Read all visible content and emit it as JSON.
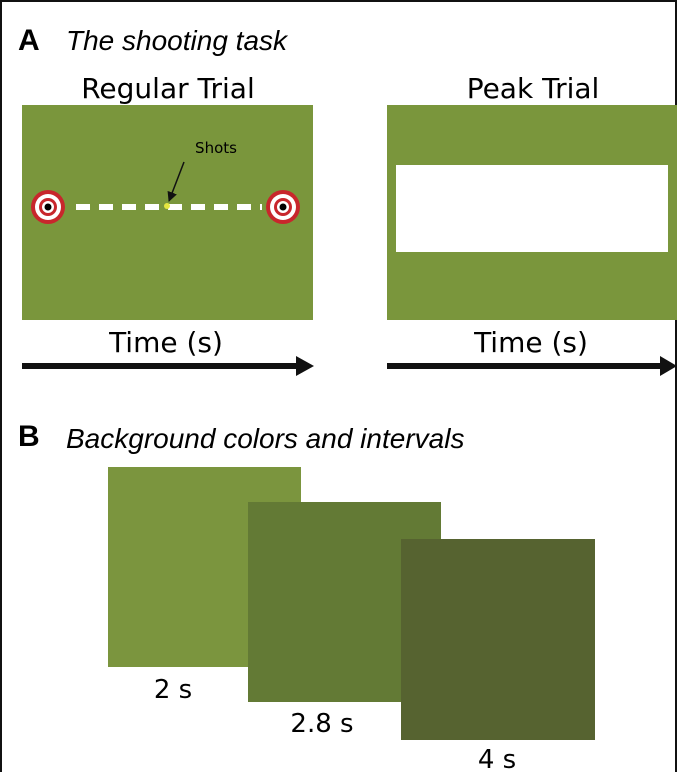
{
  "panels": [
    {
      "label": "A",
      "title": "The shooting task",
      "trials": [
        {
          "title": "Regular Trial",
          "annotation": "Shots",
          "time_label": "Time (s)"
        },
        {
          "title": "Peak Trial",
          "time_label": "Time (s)"
        }
      ]
    },
    {
      "label": "B",
      "title": "Background colors and intervals",
      "intervals": [
        "2 s",
        "2.8 s",
        "4 s"
      ]
    }
  ]
}
